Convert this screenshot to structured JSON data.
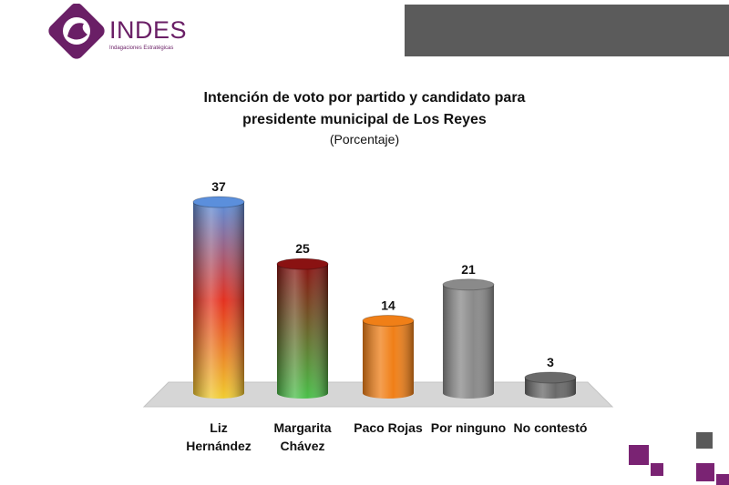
{
  "logo": {
    "name": "INDES",
    "tagline": "Indagaciones Estratégicas"
  },
  "colors": {
    "brand": "#6a1f66",
    "header_bar": "#5b5b5b"
  },
  "chart_data": {
    "type": "bar",
    "title_line1": "Intención de voto por partido y candidato  para",
    "title_line2": "presidente municipal de Los Reyes",
    "subtitle": "(Porcentaje)",
    "categories": [
      "Liz\nHernández",
      "Margarita\nChávez",
      "Paco Rojas",
      "Por ninguno",
      "No contestó"
    ],
    "category_lines": [
      [
        "Liz",
        "Hernández"
      ],
      [
        "Margarita",
        "Chávez"
      ],
      [
        "Paco Rojas"
      ],
      [
        "Por ninguno"
      ],
      [
        "No contestó"
      ]
    ],
    "values": [
      37,
      25,
      14,
      21,
      3
    ],
    "value_labels": [
      "37",
      "25",
      "14",
      "21",
      "3"
    ],
    "ylim": [
      0,
      40
    ],
    "grid": false,
    "legend": "none",
    "bar_colors": [
      [
        "#5b8fdc",
        "#e43120",
        "#f0cc30"
      ],
      [
        "#8a1212",
        "#4ac04a"
      ],
      [
        "#f07f17"
      ],
      [
        "#8a8a8a"
      ],
      [
        "#6a6a6a"
      ]
    ]
  }
}
